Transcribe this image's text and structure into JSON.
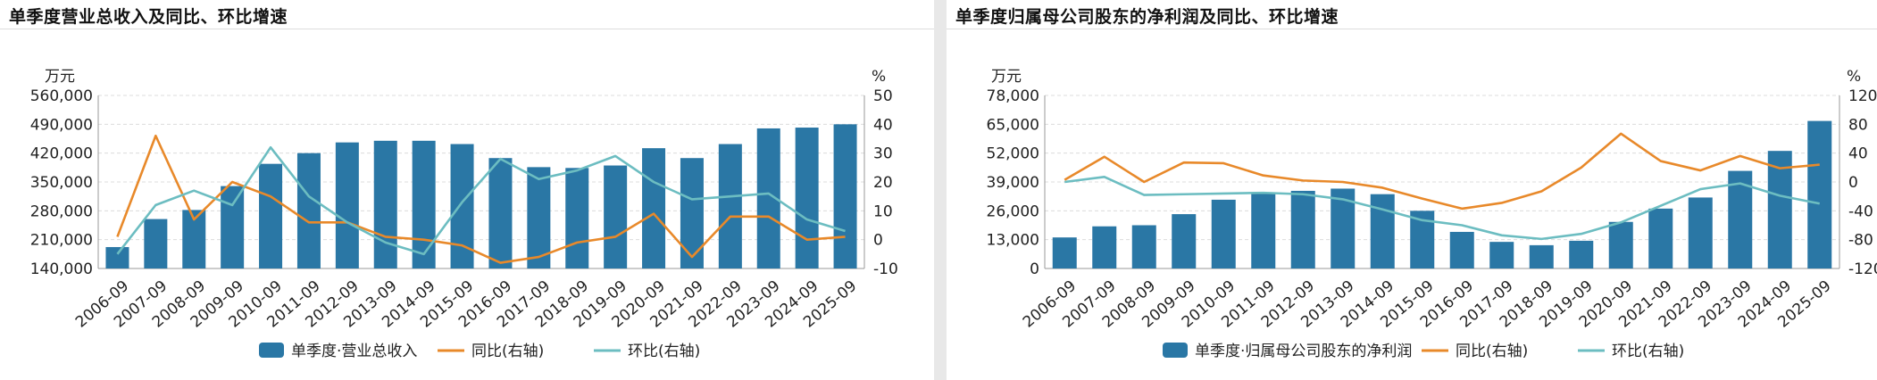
{
  "charts": [
    {
      "title": "单季度营业总收入及同比、环比增速",
      "chart_data": {
        "type": "bar",
        "categories": [
          "2006-09",
          "2007-09",
          "2008-09",
          "2009-09",
          "2010-09",
          "2011-09",
          "2012-09",
          "2013-09",
          "2014-09",
          "2015-09",
          "2016-09",
          "2017-09",
          "2018-09",
          "2019-09",
          "2020-09",
          "2021-09",
          "2022-09",
          "2023-09",
          "2024-09",
          "2025-09"
        ],
        "left_unit": "万元",
        "right_unit": "%",
        "left_ticks": [
          "560,000",
          "490,000",
          "420,000",
          "350,000",
          "280,000",
          "210,000",
          "140,000"
        ],
        "right_ticks": [
          "50",
          "40",
          "30",
          "20",
          "10",
          "0",
          "-10"
        ],
        "ylim_left": [
          140000,
          560000
        ],
        "ylim_right": [
          -10,
          50
        ],
        "grid": true,
        "legend_position": "bottom",
        "series": [
          {
            "name": "单季度·营业总收入",
            "type": "bar",
            "axis": "left",
            "color": "#2a77a5",
            "values": [
              192000,
              260000,
              282000,
              340000,
              394000,
              420000,
              446000,
              450000,
              450000,
              442000,
              408000,
              386000,
              384000,
              390000,
              432000,
              408000,
              442000,
              480000,
              482000,
              490000
            ]
          },
          {
            "name": "同比(右轴)",
            "type": "line",
            "axis": "right",
            "color": "#e8892a",
            "values": [
              1,
              36,
              7,
              20,
              15,
              6,
              6,
              1,
              0,
              -2,
              -8,
              -6,
              -1,
              1,
              9,
              -6,
              8,
              8,
              0,
              1
            ]
          },
          {
            "name": "环比(右轴)",
            "type": "line",
            "axis": "right",
            "color": "#6cbdc1",
            "values": [
              -5,
              12,
              17,
              12,
              32,
              15,
              6,
              -1,
              -5,
              13,
              28,
              21,
              24,
              29,
              20,
              14,
              15,
              16,
              7,
              3
            ]
          }
        ]
      }
    },
    {
      "title": "单季度归属母公司股东的净利润及同比、环比增速",
      "chart_data": {
        "type": "bar",
        "categories": [
          "2006-09",
          "2007-09",
          "2008-09",
          "2009-09",
          "2010-09",
          "2011-09",
          "2012-09",
          "2013-09",
          "2014-09",
          "2015-09",
          "2016-09",
          "2017-09",
          "2018-09",
          "2019-09",
          "2020-09",
          "2021-09",
          "2022-09",
          "2023-09",
          "2024-09",
          "2025-09"
        ],
        "left_unit": "万元",
        "right_unit": "%",
        "left_ticks": [
          "78,000",
          "65,000",
          "52,000",
          "39,000",
          "26,000",
          "13,000",
          "0"
        ],
        "right_ticks": [
          "120",
          "80",
          "40",
          "0",
          "-40",
          "-80",
          "-120"
        ],
        "ylim_left": [
          0,
          78000
        ],
        "ylim_right": [
          -120,
          120
        ],
        "grid": true,
        "legend_position": "bottom",
        "series": [
          {
            "name": "单季度·归属母公司股东的净利润",
            "type": "bar",
            "axis": "left",
            "color": "#2a77a5",
            "values": [
              14000,
              19000,
              19500,
              24500,
              31000,
              34000,
              35000,
              36000,
              33500,
              26000,
              16500,
              12000,
              10500,
              12500,
              21000,
              27000,
              32000,
              44000,
              53000,
              66500
            ]
          },
          {
            "name": "同比(右轴)",
            "type": "line",
            "axis": "right",
            "color": "#e8892a",
            "values": [
              3,
              35,
              0,
              27,
              26,
              9,
              2,
              0,
              -8,
              -23,
              -37,
              -29,
              -13,
              20,
              67,
              29,
              16,
              36,
              19,
              24
            ]
          },
          {
            "name": "环比(右轴)",
            "type": "line",
            "axis": "right",
            "color": "#6cbdc1",
            "values": [
              0,
              7,
              -18,
              -17,
              -16,
              -15,
              -17,
              -24,
              -38,
              -53,
              -60,
              -74,
              -79,
              -72,
              -56,
              -33,
              -10,
              -2,
              -19,
              -30
            ]
          }
        ]
      }
    }
  ]
}
